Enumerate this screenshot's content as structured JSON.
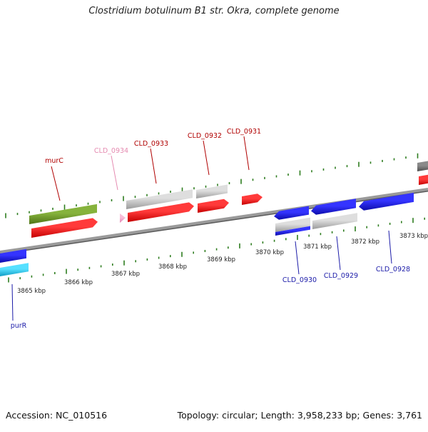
{
  "title": "Clostridium botulinum B1 str. Okra, complete genome",
  "footer": {
    "accession": "Accession: NC_010516",
    "summary": "Topology: circular; Length: 3,958,233 bp; Genes: 3,761"
  },
  "colors": {
    "backbone": "#8a8a8a",
    "tick": "#2e7d1f",
    "forward_label": "#b00000",
    "forward_label_faint": "#e58ab0",
    "reverse_label": "#1a1aa8",
    "red": "#ee1010",
    "green": "#6f9a2a",
    "gray": "#c4c4c4",
    "dark_gray": "#707070",
    "blue": "#1a1ae6",
    "cyan": "#18c8f0",
    "pink": "#f4a3c8"
  },
  "scale": {
    "labels": [
      "3865 kbp",
      "3866 kbp",
      "3867 kbp",
      "3868 kbp",
      "3869 kbp",
      "3870 kbp",
      "3871 kbp",
      "3872 kbp",
      "3873 kbp"
    ]
  },
  "gene_labels": {
    "murC": "murC",
    "CLD_0934": "CLD_0934",
    "CLD_0933": "CLD_0933",
    "CLD_0932": "CLD_0932",
    "CLD_0931": "CLD_0931",
    "purR": "purR",
    "CLD_0930": "CLD_0930",
    "CLD_0929": "CLD_0929",
    "CLD_0928": "CLD_0928"
  }
}
